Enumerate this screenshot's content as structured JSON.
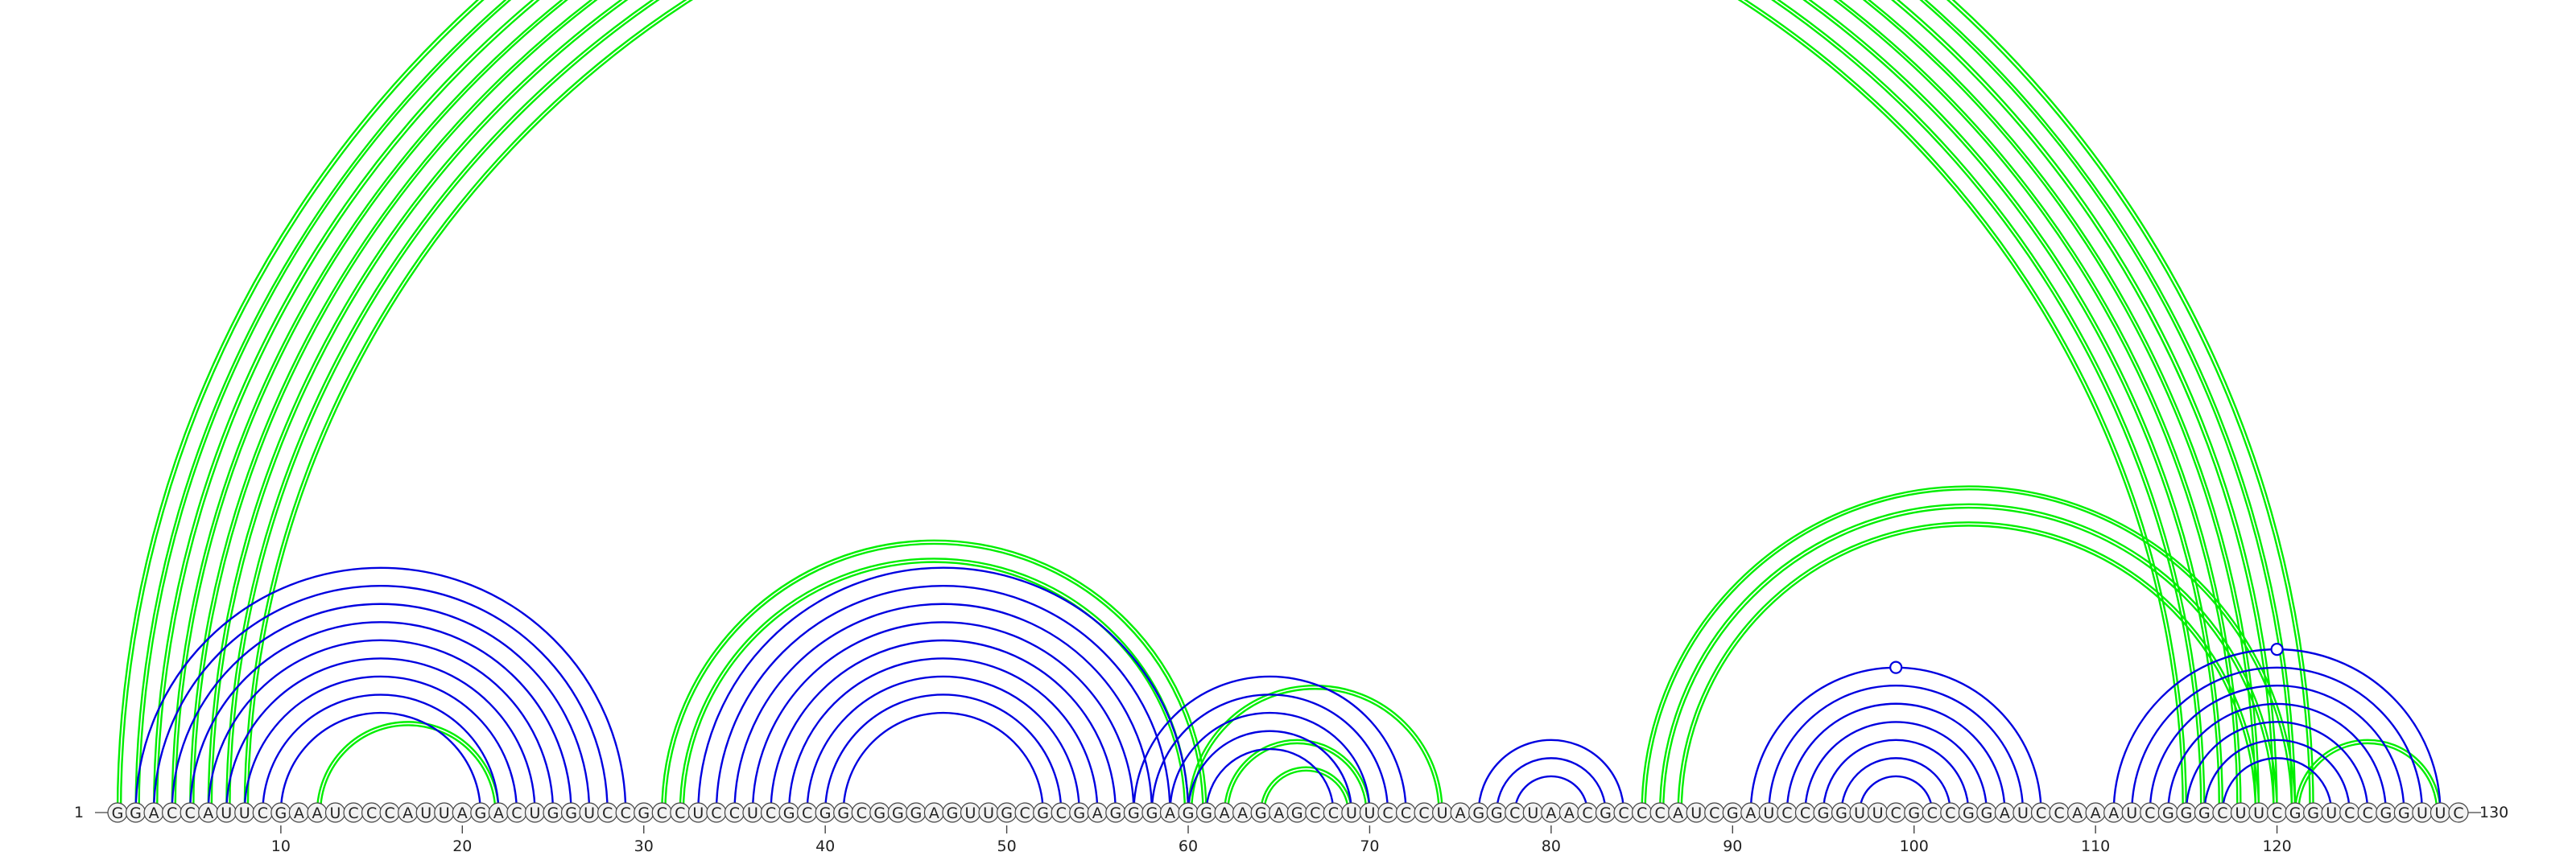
{
  "sequence": "GGACCAUUCGAAUCCCAUUAGACUGGUCCGCCUCCUCGCGGCGGGAGUUGCGCGAGGGAGGAAGAGCCUUCCCUAGGCUAACGCCCAUCGAUCCGGUUCGCCGGAUCCAAAUCGGGCUUCGGUCCGGUUC",
  "start_label": "1",
  "end_label": "130",
  "ticks": [
    10,
    20,
    30,
    40,
    50,
    60,
    70,
    80,
    90,
    100,
    110,
    120
  ],
  "colors": {
    "primary": "#0000e0",
    "alternate": "#00ee00"
  },
  "arcs": {
    "blue_primary": [
      [
        2,
        29
      ],
      [
        3,
        28
      ],
      [
        4,
        27
      ],
      [
        5,
        26
      ],
      [
        6,
        25
      ],
      [
        7,
        24
      ],
      [
        8,
        23
      ],
      [
        9,
        22
      ],
      [
        10,
        21
      ],
      [
        33,
        60
      ],
      [
        34,
        59
      ],
      [
        35,
        58
      ],
      [
        36,
        57
      ],
      [
        37,
        56
      ],
      [
        38,
        55
      ],
      [
        39,
        54
      ],
      [
        40,
        53
      ],
      [
        41,
        52
      ],
      [
        57,
        72
      ],
      [
        58,
        71
      ],
      [
        59,
        70
      ],
      [
        60,
        69
      ],
      [
        61,
        68
      ],
      [
        76,
        84
      ],
      [
        77,
        83
      ],
      [
        78,
        82
      ],
      [
        91,
        107
      ],
      [
        92,
        106
      ],
      [
        93,
        105
      ],
      [
        94,
        104
      ],
      [
        95,
        103
      ],
      [
        96,
        102
      ],
      [
        97,
        101
      ],
      [
        111,
        129
      ],
      [
        112,
        128
      ],
      [
        113,
        127
      ],
      [
        114,
        126
      ],
      [
        115,
        125
      ],
      [
        116,
        124
      ],
      [
        117,
        123
      ]
    ],
    "green_alternate": [
      [
        1,
        122
      ],
      [
        2,
        121
      ],
      [
        3,
        120
      ],
      [
        4,
        119
      ],
      [
        5,
        118
      ],
      [
        6,
        117
      ],
      [
        7,
        116
      ],
      [
        8,
        115
      ],
      [
        12,
        22
      ],
      [
        31,
        61
      ],
      [
        32,
        60
      ],
      [
        60,
        74
      ],
      [
        62,
        70
      ],
      [
        64,
        69
      ],
      [
        85,
        121
      ],
      [
        86,
        120
      ],
      [
        87,
        119
      ],
      [
        121,
        129
      ]
    ],
    "markers": [
      {
        "color": "alternate",
        "filled": false,
        "position": 65
      },
      {
        "color": "alternate",
        "filled": true,
        "position": 15
      },
      {
        "color": "primary",
        "filled": false,
        "position": 99
      },
      {
        "color": "primary",
        "filled": false,
        "position": 120
      }
    ]
  }
}
